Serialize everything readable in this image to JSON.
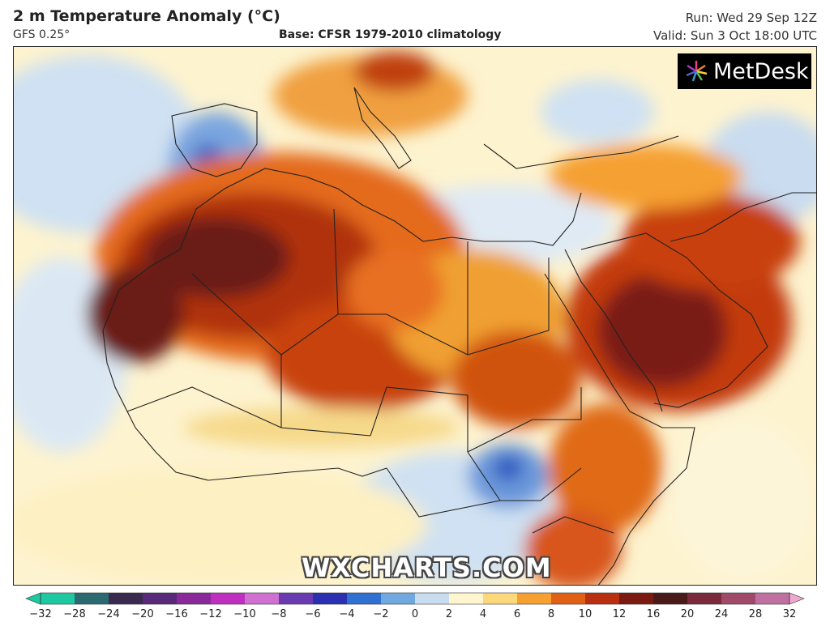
{
  "header": {
    "title": "2 m Temperature Anomaly (°C)",
    "model": "GFS 0.25°",
    "base": "Base: CFSR 1979-2010 climatology",
    "run": "Run: Wed 29 Sep 12Z",
    "valid": "Valid: Sun 3 Oct 18:00 UTC"
  },
  "logo": {
    "text": "MetDesk"
  },
  "watermark": "WXCHARTS.COM",
  "colorbar": {
    "ticks": [
      "−32",
      "−28",
      "−24",
      "−20",
      "−16",
      "−12",
      "−10",
      "−8",
      "−6",
      "−4",
      "−2",
      "0",
      "2",
      "4",
      "6",
      "8",
      "10",
      "12",
      "16",
      "20",
      "24",
      "28",
      "32"
    ],
    "colors": [
      "#1ec8a0",
      "#2a6a70",
      "#3b2a50",
      "#5a2a7a",
      "#8a2a9a",
      "#c030c0",
      "#d070d0",
      "#6a3ab0",
      "#2a30b0",
      "#3070d0",
      "#70a8e0",
      "#c8ddf0",
      "#fff6d0",
      "#fbd87a",
      "#f5a030",
      "#e06015",
      "#b83010",
      "#7a1a10",
      "#4a1a1a",
      "#7a2a3a",
      "#a04a6a",
      "#c070a0",
      "#f0a8d0"
    ],
    "colors_meaning": "color swatches between ticks from cold (left) to warm (right)"
  }
}
